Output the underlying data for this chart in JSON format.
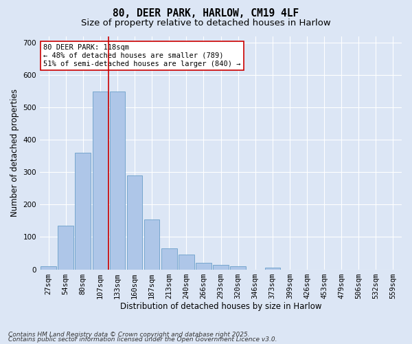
{
  "title_line1": "80, DEER PARK, HARLOW, CM19 4LF",
  "title_line2": "Size of property relative to detached houses in Harlow",
  "xlabel": "Distribution of detached houses by size in Harlow",
  "ylabel": "Number of detached properties",
  "categories": [
    "27sqm",
    "54sqm",
    "80sqm",
    "107sqm",
    "133sqm",
    "160sqm",
    "187sqm",
    "213sqm",
    "240sqm",
    "266sqm",
    "293sqm",
    "320sqm",
    "346sqm",
    "373sqm",
    "399sqm",
    "426sqm",
    "453sqm",
    "479sqm",
    "506sqm",
    "532sqm",
    "559sqm"
  ],
  "values": [
    10,
    135,
    360,
    550,
    550,
    290,
    155,
    65,
    45,
    20,
    15,
    10,
    0,
    5,
    0,
    0,
    0,
    0,
    0,
    0,
    0
  ],
  "bar_color": "#aec6e8",
  "bar_edge_color": "#6a9fc8",
  "background_color": "#dce6f5",
  "fig_background_color": "#dce6f5",
  "grid_color": "#ffffff",
  "vline_x": 3.5,
  "vline_color": "#cc0000",
  "annotation_text": "80 DEER PARK: 118sqm\n← 48% of detached houses are smaller (789)\n51% of semi-detached houses are larger (840) →",
  "annotation_box_color": "#ffffff",
  "annotation_box_edgecolor": "#cc0000",
  "footer_line1": "Contains HM Land Registry data © Crown copyright and database right 2025.",
  "footer_line2": "Contains public sector information licensed under the Open Government Licence v3.0.",
  "ylim": [
    0,
    720
  ],
  "yticks": [
    0,
    100,
    200,
    300,
    400,
    500,
    600,
    700
  ],
  "title_fontsize": 10.5,
  "subtitle_fontsize": 9.5,
  "axis_label_fontsize": 8.5,
  "tick_fontsize": 7.5,
  "annotation_fontsize": 7.5,
  "footer_fontsize": 6.5
}
